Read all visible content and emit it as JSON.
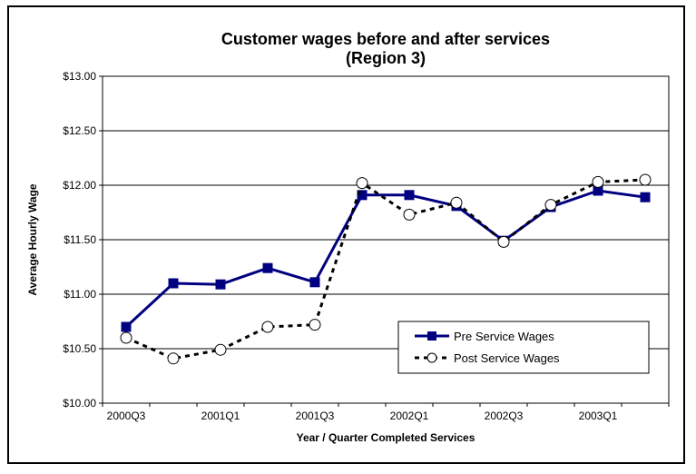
{
  "chart_data": {
    "type": "line",
    "title": "Customer wages before and after services",
    "subtitle": "(Region 3)",
    "xlabel": "Year / Quarter Completed Services",
    "ylabel": "Average Hourly Wage",
    "x": [
      "2000Q3",
      "2000Q4",
      "2001Q1",
      "2001Q2",
      "2001Q3",
      "2001Q4",
      "2002Q1",
      "2002Q2",
      "2002Q3",
      "2002Q4",
      "2003Q1",
      "2003Q2"
    ],
    "x_tick_labels": [
      "2000Q3",
      "2001Q1",
      "2001Q3",
      "2002Q1",
      "2002Q3",
      "2003Q1"
    ],
    "y_ticks": [
      10.0,
      10.5,
      11.0,
      11.5,
      12.0,
      12.5,
      13.0
    ],
    "y_tick_labels": [
      "$10.00",
      "$10.50",
      "$11.00",
      "$11.50",
      "$12.00",
      "$12.50",
      "$13.00"
    ],
    "ylim": [
      10.0,
      13.0
    ],
    "grid": "horizontal",
    "legend_position": "lower-right",
    "series": [
      {
        "name": "Pre Service Wages",
        "values": [
          10.7,
          11.1,
          11.09,
          11.24,
          11.11,
          11.91,
          11.91,
          11.81,
          11.49,
          11.8,
          11.95,
          11.89
        ],
        "color": "#000080",
        "line_style": "solid",
        "marker": "square"
      },
      {
        "name": "Post Service Wages",
        "values": [
          10.6,
          10.41,
          10.49,
          10.7,
          10.72,
          12.02,
          11.73,
          11.84,
          11.48,
          11.82,
          12.03,
          12.05
        ],
        "color": "#000000",
        "line_style": "dashed",
        "marker": "open-circle"
      }
    ]
  }
}
